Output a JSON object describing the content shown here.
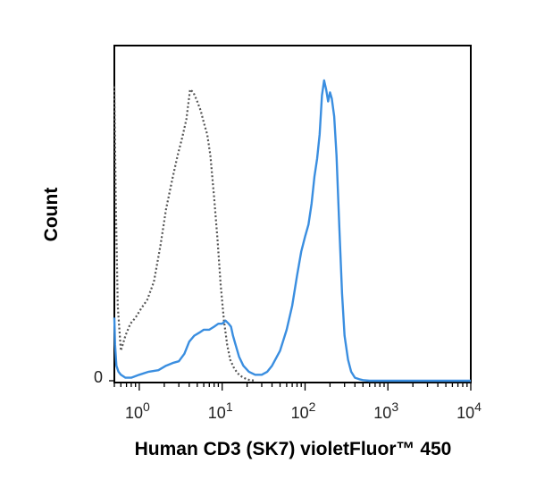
{
  "chart_data": {
    "type": "line",
    "title": "",
    "xlabel": "Human CD3 (SK7) violetFluor™ 450",
    "ylabel": "Count",
    "x_scale": "log",
    "xlim": [
      0.5,
      10000
    ],
    "ylim": [
      0,
      100
    ],
    "y_tick_labels": [
      {
        "value": 0,
        "label": "0"
      }
    ],
    "x_tick_labels": [
      {
        "value": 1,
        "base": "10",
        "exp": "0"
      },
      {
        "value": 10,
        "base": "10",
        "exp": "1"
      },
      {
        "value": 100,
        "base": "10",
        "exp": "2"
      },
      {
        "value": 1000,
        "base": "10",
        "exp": "3"
      },
      {
        "value": 10000,
        "base": "10",
        "exp": "4"
      }
    ],
    "grid": false,
    "legend": "none",
    "series": [
      {
        "style": "dotted",
        "color": "#555555",
        "x": [
          0.5,
          0.52,
          0.55,
          0.6,
          0.68,
          0.78,
          0.9,
          1.05,
          1.25,
          1.5,
          1.8,
          2.1,
          2.5,
          2.9,
          3.3,
          3.7,
          4.1,
          4.5,
          5.0,
          5.5,
          6.0,
          6.6,
          7.2,
          8.0,
          8.8,
          9.6,
          10.5,
          11.5,
          12.5,
          14.0,
          16.0,
          18.0,
          21.0,
          25.0
        ],
        "y": [
          98,
          60,
          25,
          10,
          15,
          19,
          21,
          24,
          27,
          33,
          45,
          57,
          67,
          75,
          81,
          87,
          97,
          96,
          93,
          90,
          86,
          82,
          75,
          61,
          47,
          32,
          20,
          12,
          7,
          4,
          2,
          1,
          0.3,
          0
        ]
      },
      {
        "style": "solid",
        "color": "#3a8ee0",
        "x": [
          0.5,
          0.51,
          0.53,
          0.56,
          0.6,
          0.68,
          0.8,
          1.0,
          1.3,
          1.7,
          2.1,
          2.6,
          3.0,
          3.5,
          4.0,
          4.6,
          5.3,
          6.0,
          7.0,
          8.0,
          9.0,
          10.0,
          11.0,
          12.0,
          12.8,
          13.5,
          14.5,
          16.0,
          18.0,
          21.0,
          25.0,
          30.0,
          35.0,
          40.0,
          50.0,
          60.0,
          70.0,
          80.0,
          90.0,
          100.0,
          110.0,
          120.0,
          130.0,
          140.0,
          150.0,
          160.0,
          170.0,
          180.0,
          190.0,
          200.0,
          210.0,
          225.0,
          240.0,
          260.0,
          280.0,
          300.0,
          330.0,
          360.0,
          400.0,
          450.0,
          500.0,
          600.0,
          800.0,
          1200.0,
          2000.0,
          5000.0,
          10000.0
        ],
        "y": [
          21,
          12,
          5,
          3,
          2,
          1,
          1,
          2,
          3,
          3.5,
          5,
          6,
          6.5,
          9,
          13,
          15,
          16,
          17,
          17,
          18,
          19,
          19,
          20,
          19,
          18,
          15,
          12,
          8,
          5,
          3,
          2,
          2,
          3,
          5,
          10,
          17,
          25,
          35,
          43,
          48,
          52,
          59,
          68,
          74,
          82,
          95,
          100,
          97,
          93,
          96,
          94,
          88,
          75,
          50,
          29,
          15,
          7,
          3,
          1,
          0.5,
          0.2,
          0,
          0,
          0,
          0,
          0,
          0
        ]
      }
    ]
  }
}
